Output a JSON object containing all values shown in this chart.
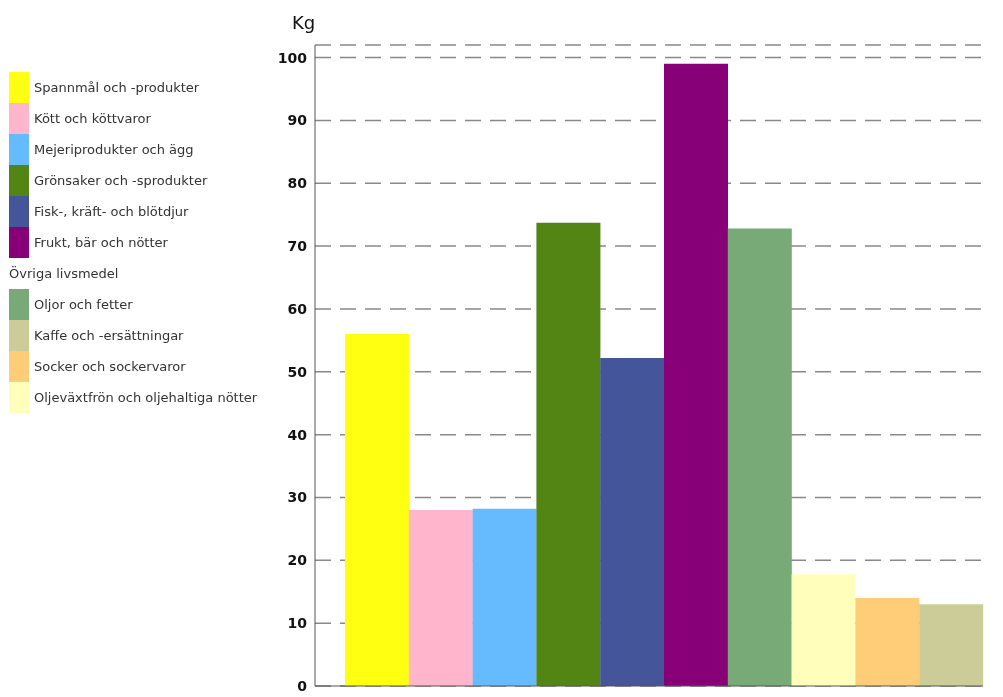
{
  "chart_data": {
    "type": "bar",
    "ylabel": "Kg",
    "categories": [
      null,
      null,
      null,
      null,
      null,
      null,
      null,
      null,
      null,
      null
    ],
    "series": [
      {
        "name": "Spannmål och -produkter",
        "color": "#ffff11",
        "values": [
          56,
          null,
          null,
          null,
          null,
          null,
          null,
          null,
          null,
          null
        ]
      },
      {
        "name": "Kött och köttvaror",
        "color": "#ffb6cc",
        "values": [
          null,
          28,
          null,
          null,
          null,
          null,
          null,
          null,
          null,
          null
        ]
      },
      {
        "name": "Mejeriprodukter och ägg",
        "color": "#66bbff",
        "values": [
          null,
          null,
          28.2,
          null,
          null,
          null,
          null,
          null,
          null,
          null
        ]
      },
      {
        "name": "Grönsaker och -sprodukter",
        "color": "#528514",
        "values": [
          null,
          null,
          null,
          73.7,
          null,
          null,
          null,
          null,
          null,
          null
        ]
      },
      {
        "name": "Fisk-, kräft- och blötdjur",
        "color": "#445599",
        "values": [
          null,
          null,
          null,
          null,
          52.2,
          null,
          null,
          null,
          null,
          null
        ]
      },
      {
        "name": "Frukt, bär och nötter",
        "color": "#880077",
        "values": [
          null,
          null,
          null,
          null,
          null,
          99,
          null,
          null,
          null,
          null
        ]
      },
      {
        "name": "Oljor och fetter",
        "color": "#77aa77",
        "values": [
          null,
          null,
          null,
          null,
          null,
          null,
          72.8,
          null,
          null,
          null
        ]
      },
      {
        "name": "Kaffe och -ersättningar",
        "color": "#cccc99",
        "values": [
          null,
          null,
          null,
          null,
          null,
          null,
          null,
          null,
          null,
          13
        ]
      },
      {
        "name": "Socker och sockervaror",
        "color": "#ffcc77",
        "values": [
          null,
          null,
          null,
          null,
          null,
          null,
          null,
          null,
          14,
          null
        ]
      },
      {
        "name": "Oljeväxtfrön och oljehaltiga nötter",
        "color": "#ffffbb",
        "values": [
          null,
          null,
          null,
          null,
          null,
          null,
          null,
          17.8,
          null,
          null
        ]
      }
    ],
    "annotations": [
      "Övriga livsmedel"
    ],
    "ylim": [
      0,
      102
    ],
    "yticks": [
      0,
      10,
      20,
      30,
      40,
      50,
      60,
      70,
      80,
      90,
      100
    ],
    "grid": "y",
    "legend": "left"
  }
}
